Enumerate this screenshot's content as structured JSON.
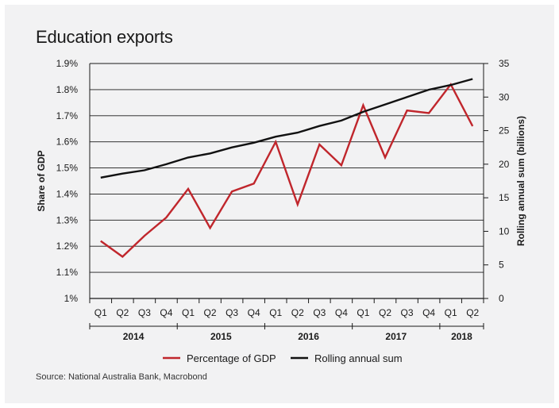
{
  "title": "Education exports",
  "source": "Source: National Australia Bank, Macrobond",
  "chart_data": {
    "type": "line",
    "title": "Education exports",
    "categories": [
      "Q1",
      "Q2",
      "Q3",
      "Q4",
      "Q1",
      "Q2",
      "Q3",
      "Q4",
      "Q1",
      "Q2",
      "Q3",
      "Q4",
      "Q1",
      "Q2",
      "Q3",
      "Q4",
      "Q1",
      "Q2"
    ],
    "years": [
      {
        "label": "2014",
        "start": 0,
        "end": 3
      },
      {
        "label": "2015",
        "start": 4,
        "end": 7
      },
      {
        "label": "2016",
        "start": 8,
        "end": 11
      },
      {
        "label": "2017",
        "start": 12,
        "end": 15
      },
      {
        "label": "2018",
        "start": 16,
        "end": 17
      }
    ],
    "ylabel_left": "Share of GDP",
    "ylabel_right": "Rolling annual sum (billions)",
    "ylim_left": [
      1.0,
      1.9
    ],
    "yticks_left": [
      "1%",
      "1.1%",
      "1.2%",
      "1.3%",
      "1.4%",
      "1.5%",
      "1.6%",
      "1.7%",
      "1.8%",
      "1.9%"
    ],
    "ylim_right": [
      0,
      35
    ],
    "yticks_right": [
      "0",
      "5",
      "10",
      "15",
      "20",
      "25",
      "30",
      "35"
    ],
    "grid": true,
    "legend_position": "bottom",
    "series": [
      {
        "name": "Percentage of GDP",
        "axis": "left",
        "color": "#c0262c",
        "values": [
          1.22,
          1.16,
          1.24,
          1.31,
          1.42,
          1.27,
          1.41,
          1.44,
          1.6,
          1.36,
          1.59,
          1.51,
          1.74,
          1.54,
          1.72,
          1.71,
          1.82,
          1.66
        ]
      },
      {
        "name": "Rolling annual sum",
        "axis": "right",
        "color": "#111111",
        "values": [
          18.0,
          18.6,
          19.1,
          20.0,
          21.0,
          21.6,
          22.5,
          23.2,
          24.1,
          24.7,
          25.7,
          26.5,
          27.8,
          28.9,
          30.0,
          31.1,
          31.8,
          32.7
        ]
      }
    ]
  }
}
